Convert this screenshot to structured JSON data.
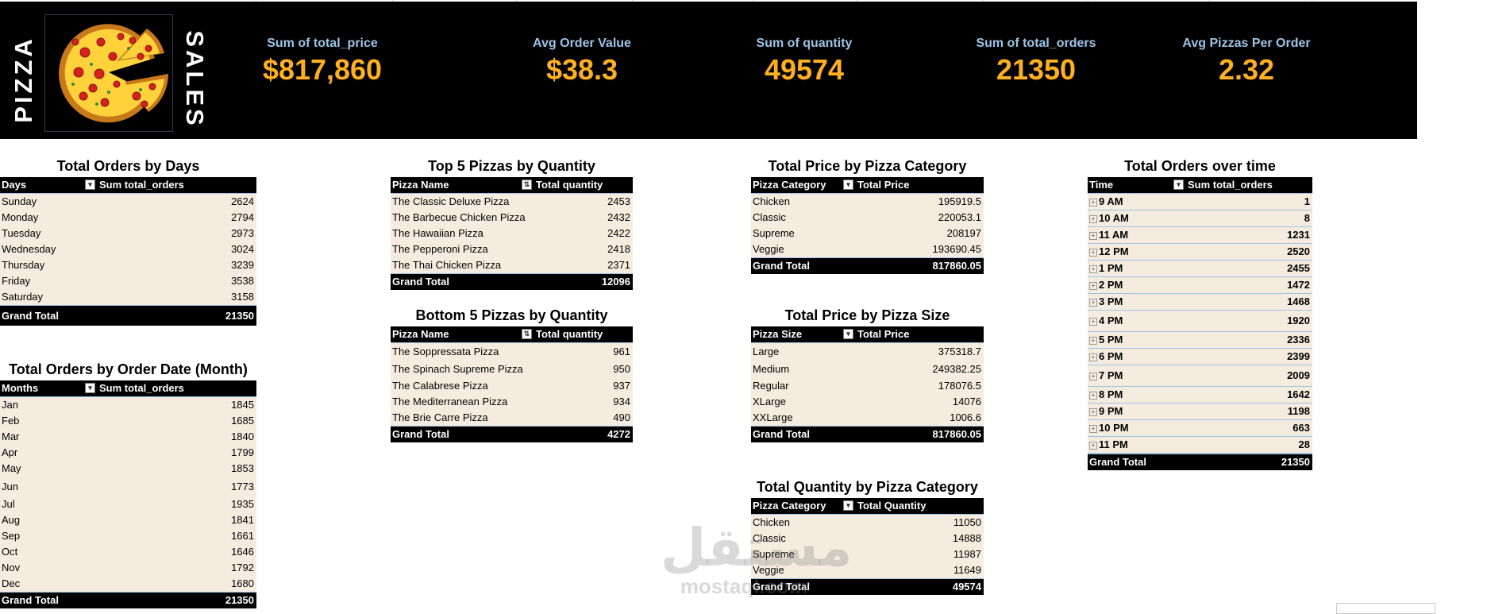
{
  "header": {
    "title_left": "PIZZA",
    "title_right": "SALES",
    "kpis": [
      {
        "label": "Sum of total_price",
        "value": "$817,860"
      },
      {
        "label": "Avg Order Value",
        "value": "$38.3"
      },
      {
        "label": "Sum of quantity",
        "value": "49574"
      },
      {
        "label": "Sum of total_orders",
        "value": "21350"
      },
      {
        "label": "Avg Pizzas Per Order",
        "value": "2.32"
      }
    ]
  },
  "colors": {
    "header_bg": "#000000",
    "kpi_label": "#9dc3e6",
    "kpi_value": "#ffb020",
    "row_bg": "#f5ecdf"
  },
  "days": {
    "title": "Total Orders by Days",
    "col1": "Days",
    "col2": "Sum total_orders",
    "rows": [
      [
        "Sunday",
        "2624"
      ],
      [
        "Monday",
        "2794"
      ],
      [
        "Tuesday",
        "2973"
      ],
      [
        "Wednesday",
        "3024"
      ],
      [
        "Thursday",
        "3239"
      ],
      [
        "Friday",
        "3538"
      ],
      [
        "Saturday",
        "3158"
      ]
    ],
    "total_label": "Grand Total",
    "total_value": "21350"
  },
  "months": {
    "title": "Total Orders by Order Date (Month)",
    "col1": "Months",
    "col2": "Sum total_orders",
    "rows": [
      [
        "Jan",
        "1845"
      ],
      [
        "Feb",
        "1685"
      ],
      [
        "Mar",
        "1840"
      ],
      [
        "Apr",
        "1799"
      ],
      [
        "May",
        "1853"
      ],
      [
        "Jun",
        "1773"
      ],
      [
        "Jul",
        "1935"
      ],
      [
        "Aug",
        "1841"
      ],
      [
        "Sep",
        "1661"
      ],
      [
        "Oct",
        "1646"
      ],
      [
        "Nov",
        "1792"
      ],
      [
        "Dec",
        "1680"
      ]
    ],
    "total_label": "Grand Total",
    "total_value": "21350"
  },
  "top5": {
    "title": "Top 5 Pizzas by Quantity",
    "col1": "Pizza Name",
    "col2": "Total quantity",
    "rows": [
      [
        "The Classic Deluxe Pizza",
        "2453"
      ],
      [
        "The Barbecue Chicken Pizza",
        "2432"
      ],
      [
        "The Hawaiian Pizza",
        "2422"
      ],
      [
        "The Pepperoni Pizza",
        "2418"
      ],
      [
        "The Thai Chicken Pizza",
        "2371"
      ]
    ],
    "total_label": "Grand Total",
    "total_value": "12096"
  },
  "bottom5": {
    "title": "Bottom 5 Pizzas by Quantity",
    "col1": "Pizza Name",
    "col2": "Total quantity",
    "rows": [
      [
        "The Soppressata Pizza",
        "961"
      ],
      [
        "The Spinach Supreme Pizza",
        "950"
      ],
      [
        "The Calabrese Pizza",
        "937"
      ],
      [
        "The Mediterranean Pizza",
        "934"
      ],
      [
        "The Brie Carre Pizza",
        "490"
      ]
    ],
    "total_label": "Grand Total",
    "total_value": "4272"
  },
  "price_category": {
    "title": "Total Price by Pizza Category",
    "col1": "Pizza Category",
    "col2": "Total Price",
    "rows": [
      [
        "Chicken",
        "195919.5"
      ],
      [
        "Classic",
        "220053.1"
      ],
      [
        "Supreme",
        "208197"
      ],
      [
        "Veggie",
        "193690.45"
      ]
    ],
    "total_label": "Grand Total",
    "total_value": "817860.05"
  },
  "price_size": {
    "title": "Total Price by Pizza Size",
    "col1": "Pizza Size",
    "col2": "Total Price",
    "rows": [
      [
        "Large",
        "375318.7"
      ],
      [
        "Medium",
        "249382.25"
      ],
      [
        "Regular",
        "178076.5"
      ],
      [
        "XLarge",
        "14076"
      ],
      [
        "XXLarge",
        "1006.6"
      ]
    ],
    "total_label": "Grand Total",
    "total_value": "817860.05"
  },
  "qty_category": {
    "title": "Total Quantity by Pizza Category",
    "col1": "Pizza Category",
    "col2": "Total Quantity",
    "rows": [
      [
        "Chicken",
        "11050"
      ],
      [
        "Classic",
        "14888"
      ],
      [
        "Supreme",
        "11987"
      ],
      [
        "Veggie",
        "11649"
      ]
    ],
    "total_label": "Grand Total",
    "total_value": "49574"
  },
  "time": {
    "title": "Total Orders over time",
    "col1": "Time",
    "col2": "Sum total_orders",
    "rows": [
      [
        "9 AM",
        "1"
      ],
      [
        "10 AM",
        "8"
      ],
      [
        "11 AM",
        "1231"
      ],
      [
        "12 PM",
        "2520"
      ],
      [
        "1 PM",
        "2455"
      ],
      [
        "2 PM",
        "1472"
      ],
      [
        "3 PM",
        "1468"
      ],
      [
        "4 PM",
        "1920"
      ],
      [
        "5 PM",
        "2336"
      ],
      [
        "6 PM",
        "2399"
      ],
      [
        "7 PM",
        "2009"
      ],
      [
        "8 PM",
        "1642"
      ],
      [
        "9 PM",
        "1198"
      ],
      [
        "10 PM",
        "663"
      ],
      [
        "11 PM",
        "28"
      ]
    ],
    "total_label": "Grand Total",
    "total_value": "21350"
  },
  "watermark": {
    "arabic": "مستقل",
    "latin": "mostaql.com"
  }
}
